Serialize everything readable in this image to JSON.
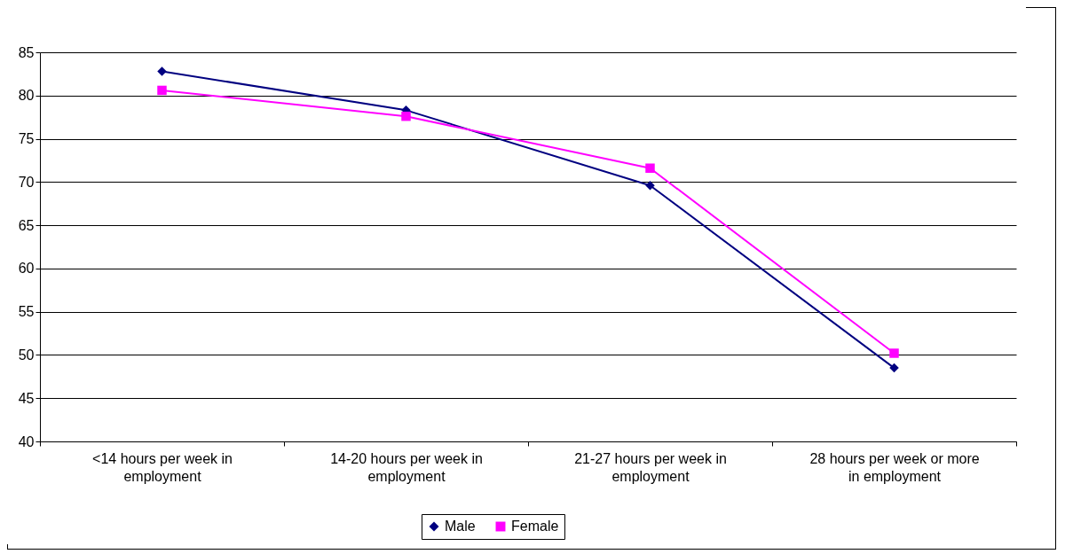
{
  "chart_data": {
    "type": "line",
    "categories": [
      "<14 hours per week in employment",
      "14-20 hours per week in employment",
      "21-27 hours per week in employment",
      "28 hours per week or more in employment"
    ],
    "series": [
      {
        "name": "Male",
        "color": "#000080",
        "marker": "diamond",
        "values": [
          82.8,
          78.3,
          69.6,
          48.5
        ]
      },
      {
        "name": "Female",
        "color": "#ff00ff",
        "marker": "square",
        "values": [
          80.6,
          77.6,
          71.6,
          50.2
        ]
      }
    ],
    "ylim": [
      40,
      85
    ],
    "yticks": [
      40,
      45,
      50,
      55,
      60,
      65,
      70,
      75,
      80,
      85
    ],
    "grid": "y",
    "legend": "bottom",
    "line_style": "solid"
  }
}
